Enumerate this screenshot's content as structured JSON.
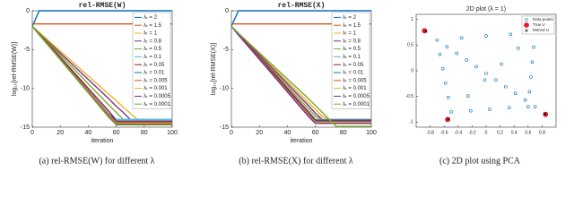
{
  "chart_data": [
    {
      "type": "line",
      "title": "rel-RMSE(W)",
      "ylabel": "log₁₀[rel-RMSE(W)]",
      "xlabel": "iteration",
      "caption": "(a) rel-RMSE(W) for different λ",
      "x": [
        0,
        5,
        55,
        60,
        65,
        70,
        75,
        100
      ],
      "xlim": [
        0,
        100
      ],
      "xticks": [
        0,
        20,
        40,
        60,
        80,
        100
      ],
      "ylim": [
        -15,
        0
      ],
      "yticks": [
        -15,
        -10,
        -5,
        0
      ],
      "legend": "upper right",
      "series": [
        {
          "name": "λₜ = 2",
          "color": "#0072BD",
          "values": [
            -2,
            0,
            0,
            0,
            0,
            0,
            0,
            0
          ]
        },
        {
          "name": "λₜ = 1.5",
          "color": "#D95319",
          "values": [
            -1.7,
            -1.7,
            -1.7,
            -1.7,
            -1.7,
            -1.7,
            -1.7,
            -1.7
          ]
        },
        {
          "name": "λₜ = 1",
          "color": "#EDB120",
          "values": [
            -2,
            -2.8,
            -10.8,
            -11.6,
            -12.4,
            -13.2,
            -14,
            -14
          ]
        },
        {
          "name": "λₜ = 0.8",
          "color": "#7E2F8E",
          "values": [
            -2,
            -2.9,
            -11.4,
            -12.3,
            -13.1,
            -14,
            -14,
            -14
          ]
        },
        {
          "name": "λₜ = 0.5",
          "color": "#77AC30",
          "values": [
            -2,
            -2.9,
            -12.2,
            -13.1,
            -14,
            -14,
            -14,
            -14
          ]
        },
        {
          "name": "λₜ = 0.1",
          "color": "#4DBEEE",
          "values": [
            -2,
            -3,
            -13,
            -14,
            -14,
            -14,
            -14,
            -14
          ]
        },
        {
          "name": "λₜ = 0.05",
          "color": "#A2142F",
          "values": [
            -2,
            -3,
            -13,
            -14.2,
            -14.2,
            -14.2,
            -14.2,
            -14.2
          ]
        },
        {
          "name": "λₜ = 0.01",
          "color": "#0072BD",
          "values": [
            -2,
            -3.1,
            -13.4,
            -14.3,
            -14.3,
            -14.3,
            -14.3,
            -14.3
          ]
        },
        {
          "name": "λₜ = 0.005",
          "color": "#D95319",
          "values": [
            -2,
            -3.1,
            -13.5,
            -14.4,
            -14.4,
            -14.4,
            -14.4,
            -14.4
          ]
        },
        {
          "name": "λₜ = 0.001",
          "color": "#EDB120",
          "values": [
            -2,
            -3.1,
            -13.6,
            -14.5,
            -14.5,
            -14.5,
            -14.5,
            -14.5
          ]
        },
        {
          "name": "λₜ = 0.0005",
          "color": "#7E2F8E",
          "values": [
            -2,
            -3.1,
            -13.7,
            -14.6,
            -14.6,
            -14.6,
            -14.6,
            -14.6
          ]
        },
        {
          "name": "λₜ = 0.0001",
          "color": "#77AC30",
          "values": [
            -2,
            -3.1,
            -13.8,
            -14.7,
            -14.7,
            -14.7,
            -14.7,
            -14.7
          ]
        }
      ]
    },
    {
      "type": "line",
      "title": "rel-RMSE(X)",
      "ylabel": "log₁₀[rel-RMSE(X)]",
      "xlabel": "iteration",
      "caption": "(b) rel-RMSE(X) for different λ",
      "x": [
        0,
        5,
        55,
        60,
        65,
        70,
        75,
        100
      ],
      "xlim": [
        0,
        100
      ],
      "xticks": [
        0,
        20,
        40,
        60,
        80,
        100
      ],
      "ylim": [
        -15,
        0
      ],
      "yticks": [
        -15,
        -10,
        -5,
        0
      ],
      "legend": "upper right",
      "series": [
        {
          "name": "λₜ = 2",
          "color": "#0072BD",
          "values": [
            -2,
            0,
            0,
            0,
            0,
            0,
            0,
            0
          ]
        },
        {
          "name": "λₜ = 1.5",
          "color": "#D95319",
          "values": [
            -1.7,
            -1.7,
            -1.7,
            -1.7,
            -1.7,
            -1.7,
            -1.7,
            -1.7
          ]
        },
        {
          "name": "λₜ = 1",
          "color": "#EDB120",
          "values": [
            -2,
            -2.9,
            -11.8,
            -12.7,
            -13.6,
            -14,
            -14,
            -14
          ]
        },
        {
          "name": "λₜ = 0.8",
          "color": "#7E2F8E",
          "values": [
            -2,
            -2.9,
            -12.2,
            -13.2,
            -14,
            -14,
            -14,
            -14
          ]
        },
        {
          "name": "λₜ = 0.5",
          "color": "#77AC30",
          "values": [
            -2,
            -3,
            -12.6,
            -13.6,
            -14,
            -14,
            -14,
            -14
          ]
        },
        {
          "name": "λₜ = 0.1",
          "color": "#4DBEEE",
          "values": [
            -2,
            -3,
            -13,
            -14,
            -14,
            -14,
            -14,
            -14
          ]
        },
        {
          "name": "λₜ = 0.05",
          "color": "#A2142F",
          "values": [
            -2,
            -3,
            -13,
            -14.1,
            -14.1,
            -14.1,
            -14.1,
            -14.1
          ]
        },
        {
          "name": "λₜ = 0.01",
          "color": "#0072BD",
          "values": [
            -2,
            -3.1,
            -13.3,
            -14.2,
            -14.2,
            -14.2,
            -14.2,
            -14.2
          ]
        },
        {
          "name": "λₜ = 0.005",
          "color": "#D95319",
          "values": [
            -2,
            -3.1,
            -13.4,
            -14.3,
            -14.3,
            -14.3,
            -14.3,
            -14.3
          ]
        },
        {
          "name": "λₜ = 0.001",
          "color": "#EDB120",
          "values": [
            -2,
            -3.1,
            -13.5,
            -14.4,
            -14.4,
            -14.4,
            -14.4,
            -14.4
          ]
        },
        {
          "name": "λₜ = 0.0005",
          "color": "#7E2F8E",
          "values": [
            -2,
            -3.1,
            -13.6,
            -14.5,
            -14.5,
            -14.5,
            -14.5,
            -14.5
          ]
        },
        {
          "name": "λₜ = 0.0001",
          "color": "#77AC30",
          "values": [
            -2,
            -2.9,
            -11.3,
            -12.2,
            -13.1,
            -14,
            -14.9,
            -14.9
          ]
        }
      ]
    },
    {
      "type": "scatter",
      "title": "2D plot (λ = 1)",
      "caption": "(c) 2D plot using PCA",
      "xlim": [
        -1,
        1
      ],
      "xticks": [
        -0.8,
        -0.6,
        -0.4,
        -0.2,
        0,
        0.2,
        0.4,
        0.6,
        0.8
      ],
      "ylim": [
        -1.1,
        1.1
      ],
      "yticks": [
        -1,
        -0.5,
        0,
        0.5,
        1
      ],
      "legend": "upper right",
      "series": [
        {
          "name": "Data points",
          "color": "#0072BD",
          "marker": "open",
          "x": [
            -0.7,
            -0.56,
            -0.42,
            -0.28,
            -0.14,
            0,
            0.14,
            0.28,
            0.42,
            0.56,
            0.7,
            0.7,
            0.68,
            0.66,
            0.64,
            0.62,
            0.6,
            -0.35,
            0,
            0.35,
            -0.5,
            -0.22,
            0.05,
            0.33,
            -0.66,
            -0.62,
            -0.58,
            -0.54,
            0.46,
            0.22,
            -0.02,
            -0.26
          ],
          "values": [
            0.6,
            0.47,
            0.34,
            0.21,
            0.08,
            -0.05,
            -0.18,
            -0.31,
            -0.44,
            -0.57,
            -0.7,
            0.75,
            0.46,
            0.17,
            -0.12,
            -0.41,
            -0.7,
            0.64,
            0.68,
            0.71,
            -0.8,
            -0.78,
            -0.75,
            -0.72,
            0.32,
            0.04,
            -0.24,
            -0.52,
            0.44,
            0.13,
            -0.18,
            -0.49
          ]
        },
        {
          "name": "True U",
          "color": "#e8192c",
          "marker": "filled",
          "x": [
            -0.88,
            0.8,
            0.85,
            -0.55
          ],
          "values": [
            0.78,
            0.9,
            -0.85,
            -0.95
          ]
        },
        {
          "name": "MinVol U",
          "color": "#000000",
          "marker": "cross",
          "x": [
            -0.86,
            0.79,
            0.84,
            -0.54
          ],
          "values": [
            0.77,
            0.89,
            -0.84,
            -0.94
          ]
        }
      ]
    }
  ]
}
